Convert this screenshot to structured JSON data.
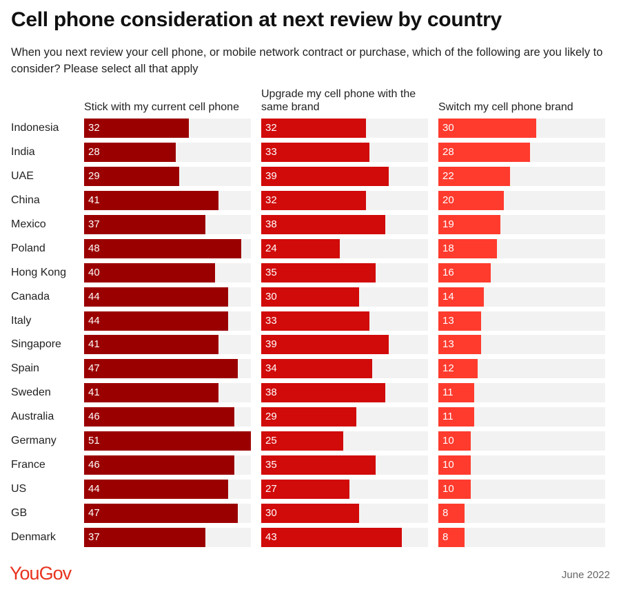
{
  "chart_data": {
    "type": "bar",
    "title": "Cell phone consideration at next review by country",
    "subtitle": "When you next review your cell phone, or mobile network contract or purchase, which of the following are you likely to consider? Please select all that apply",
    "categories": [
      "Indonesia",
      "India",
      "UAE",
      "China",
      "Mexico",
      "Poland",
      "Hong Kong",
      "Canada",
      "Italy",
      "Singapore",
      "Spain",
      "Sweden",
      "Australia",
      "Germany",
      "France",
      "US",
      "GB",
      "Denmark"
    ],
    "series": [
      {
        "name": "Stick with my current cell phone",
        "color": "#9b0000",
        "values": [
          32,
          28,
          29,
          41,
          37,
          48,
          40,
          44,
          44,
          41,
          47,
          41,
          46,
          51,
          46,
          44,
          47,
          37
        ]
      },
      {
        "name": "Upgrade my cell phone with the same brand",
        "color": "#d10a0a",
        "values": [
          32,
          33,
          39,
          32,
          38,
          24,
          35,
          30,
          33,
          39,
          34,
          38,
          29,
          25,
          35,
          27,
          30,
          43
        ]
      },
      {
        "name": "Switch my cell phone brand",
        "color": "#ff3b2e",
        "values": [
          30,
          28,
          22,
          20,
          19,
          18,
          16,
          14,
          13,
          13,
          12,
          11,
          11,
          10,
          10,
          10,
          8,
          8
        ]
      }
    ],
    "xlim": [
      0,
      51
    ],
    "source": "YouGov",
    "date": "June 2022"
  }
}
